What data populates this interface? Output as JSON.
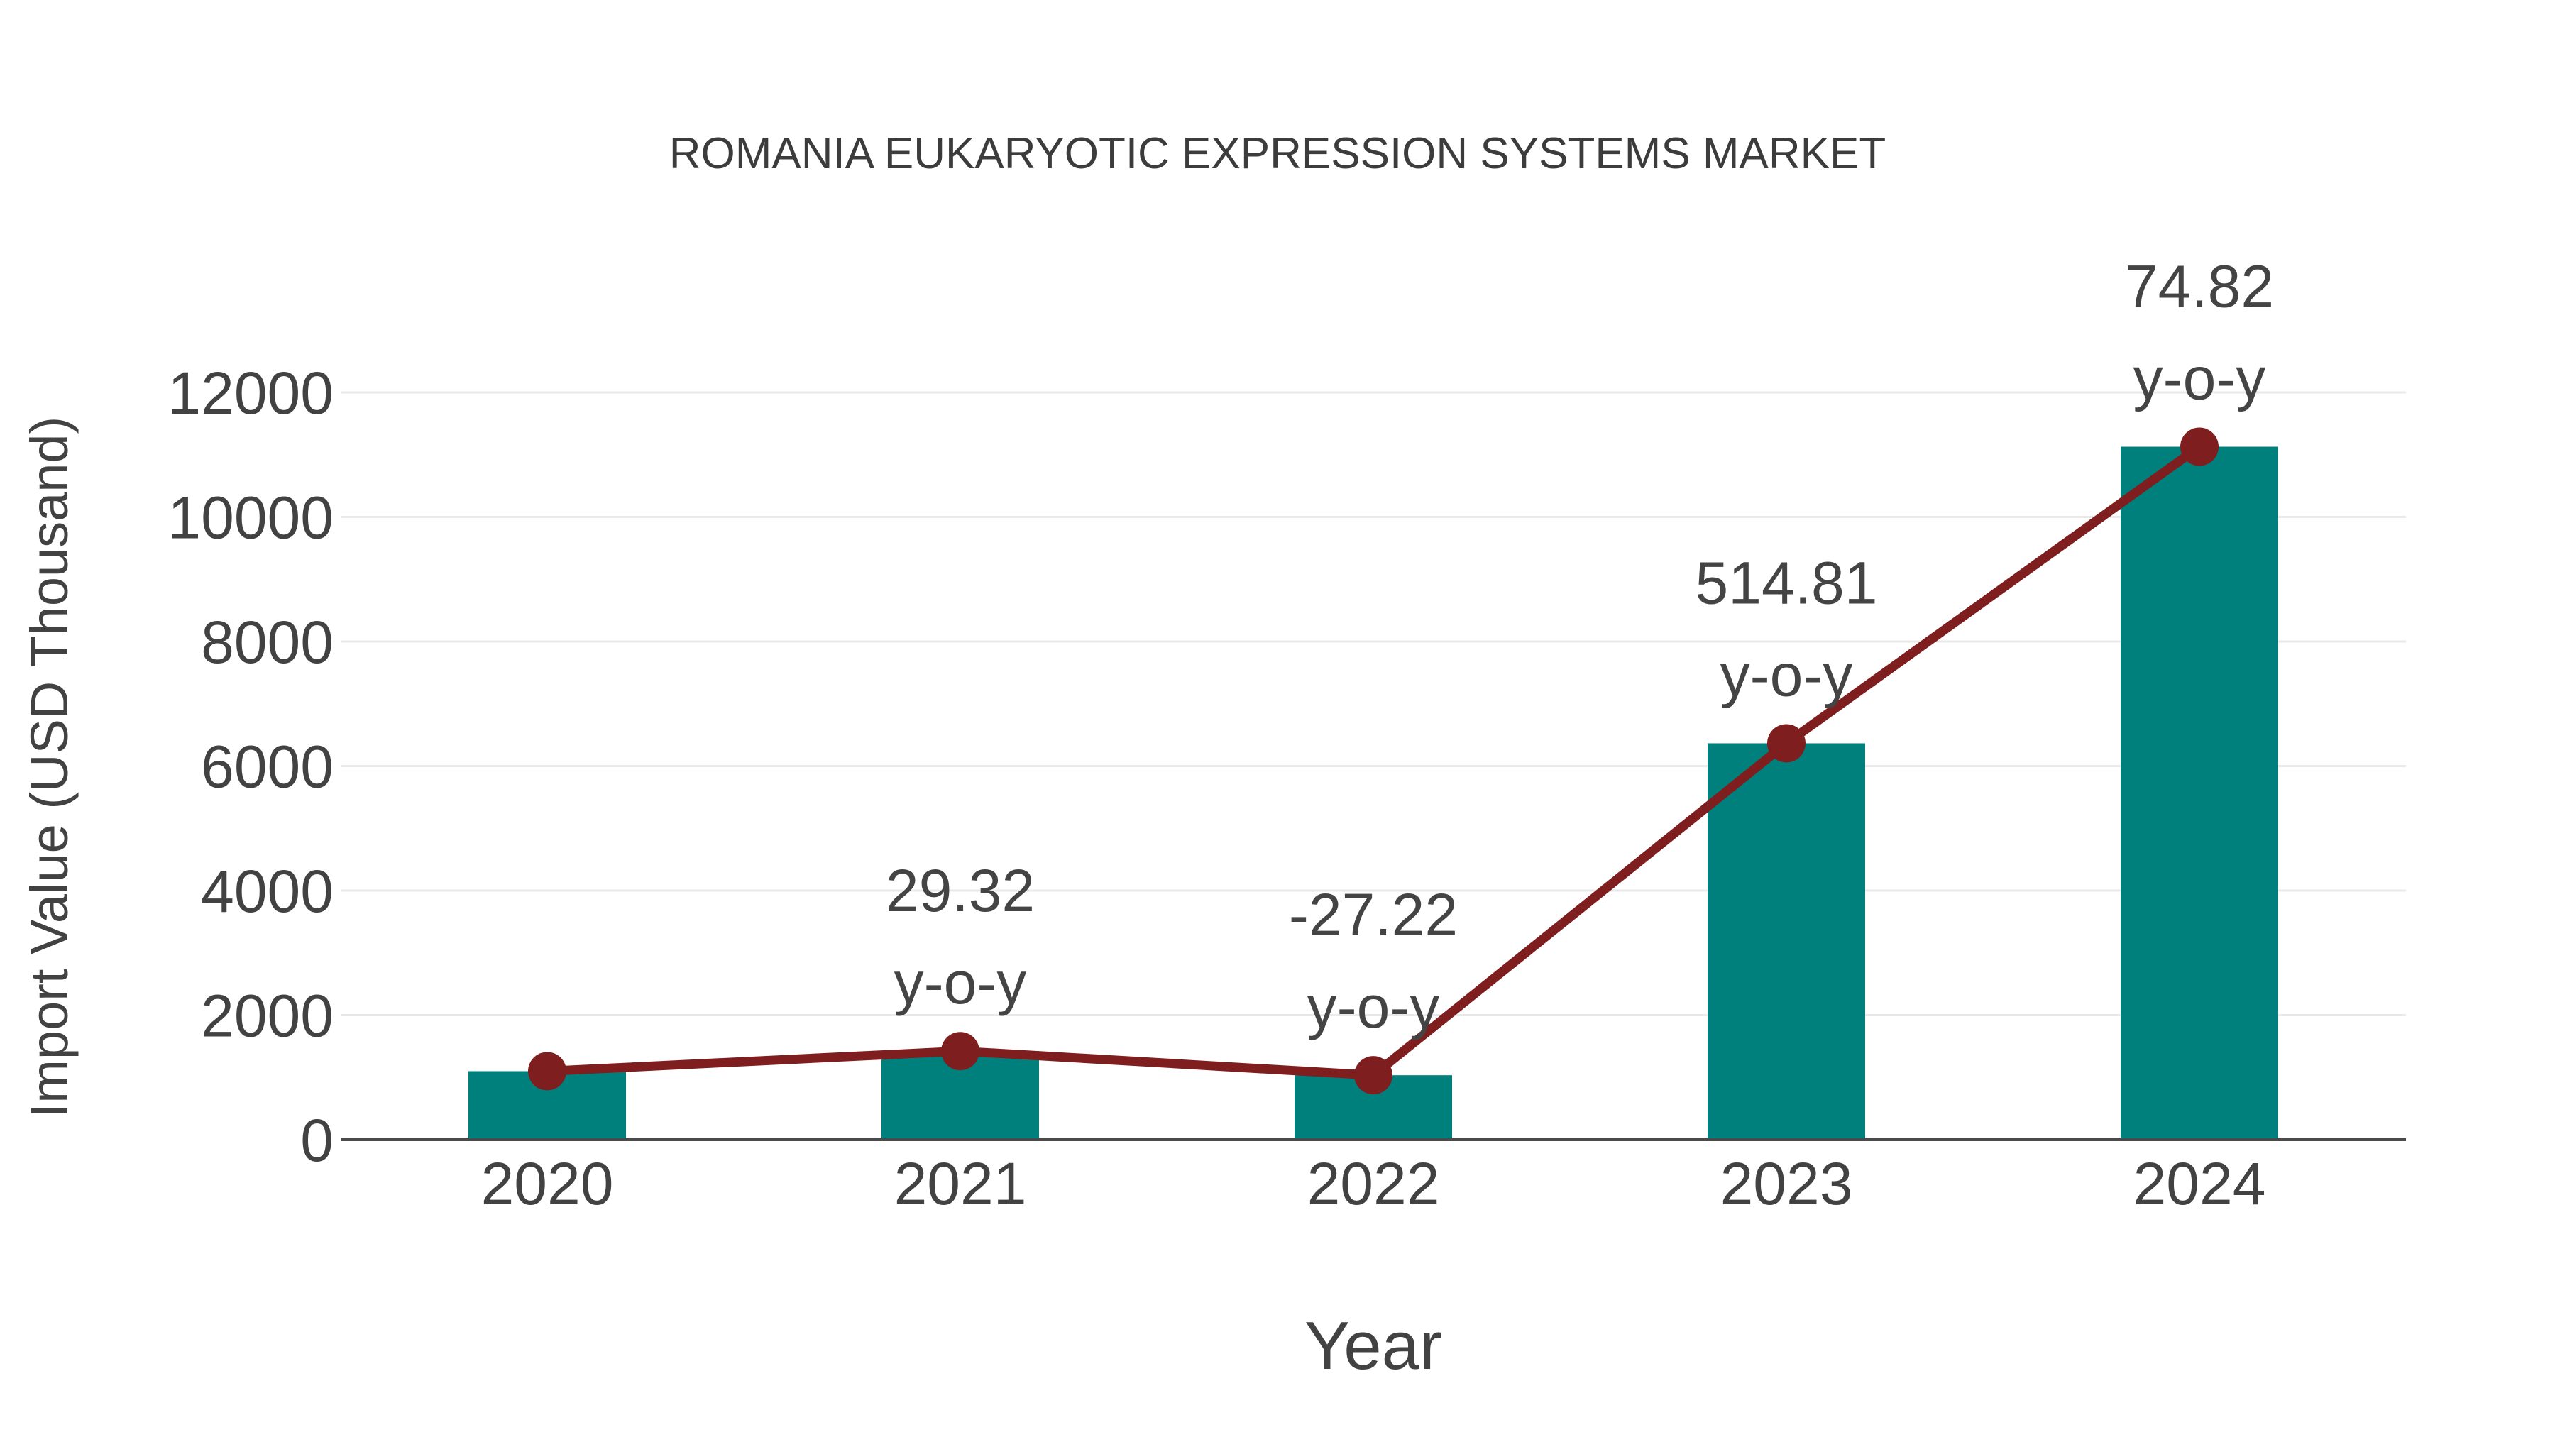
{
  "chart_data": {
    "type": "bar",
    "title": "ROMANIA EUKARYOTIC EXPRESSION SYSTEMS MARKET",
    "xlabel": "Year",
    "ylabel": "Import Value (USD Thousand)",
    "categories": [
      "2020",
      "2021",
      "2022",
      "2023",
      "2024"
    ],
    "series": [
      {
        "name": "Import Value bars",
        "type": "bar",
        "color": "#00807D",
        "values": [
          1100,
          1422,
          1035,
          6365,
          11128
        ]
      },
      {
        "name": "Import Value trend",
        "type": "line",
        "color": "#7F1E1E",
        "values": [
          1100,
          1422,
          1035,
          6365,
          11128
        ]
      }
    ],
    "annotations": [
      {
        "category": "2021",
        "value_text": "29.32",
        "unit_text": "y-o-y"
      },
      {
        "category": "2022",
        "value_text": "-27.22",
        "unit_text": "y-o-y"
      },
      {
        "category": "2023",
        "value_text": "514.81",
        "unit_text": "y-o-y"
      },
      {
        "category": "2024",
        "value_text": "74.82",
        "unit_text": "y-o-y"
      }
    ],
    "ylim": [
      0,
      12000
    ],
    "yticks": [
      0,
      2000,
      4000,
      6000,
      8000,
      10000,
      12000
    ],
    "grid": true,
    "legend_position": "none",
    "colors": {
      "background": "#ffffff",
      "gridline": "#E9E9E9",
      "axis_line": "#4A4A4A",
      "tick_text": "#424242",
      "title_text": "#3C3C3C",
      "annotation_text": "#444444"
    }
  }
}
